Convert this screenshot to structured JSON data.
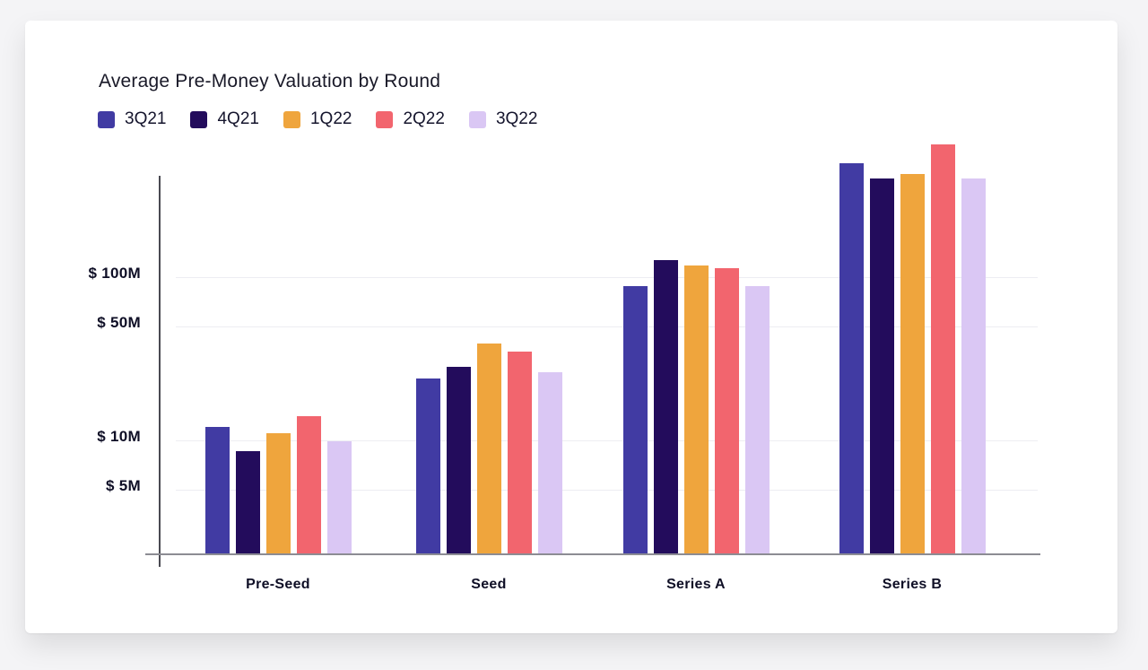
{
  "card": {
    "background": "#ffffff"
  },
  "chart_data": {
    "type": "bar",
    "title": "Average Pre-Money Valuation by Round",
    "unit": "$M",
    "categories": [
      "Pre-Seed",
      "Seed",
      "Series A",
      "Series B"
    ],
    "series": [
      {
        "name": "3Q21",
        "color": "#413BA3",
        "values": [
          12,
          24,
          88,
          500
        ]
      },
      {
        "name": "4Q21",
        "color": "#230C5C",
        "values": [
          8.6,
          28,
          127,
          400
        ]
      },
      {
        "name": "1Q22",
        "color": "#EFA53D",
        "values": [
          11,
          39,
          118,
          425
        ]
      },
      {
        "name": "2Q22",
        "color": "#F2656E",
        "values": [
          14,
          35,
          113,
          650
        ]
      },
      {
        "name": "3Q22",
        "color": "#DAC7F4",
        "values": [
          9.8,
          26,
          88,
          400
        ]
      }
    ],
    "y_axis": {
      "scale": "log",
      "range_m": [
        2,
        420
      ],
      "ticks": [
        {
          "value": 5,
          "label": "$ 5M"
        },
        {
          "value": 10,
          "label": "$ 10M"
        },
        {
          "value": 50,
          "label": "$ 50M"
        },
        {
          "value": 100,
          "label": "$ 100M"
        }
      ]
    },
    "grid": "horizontal",
    "legend_position": "top-left"
  }
}
